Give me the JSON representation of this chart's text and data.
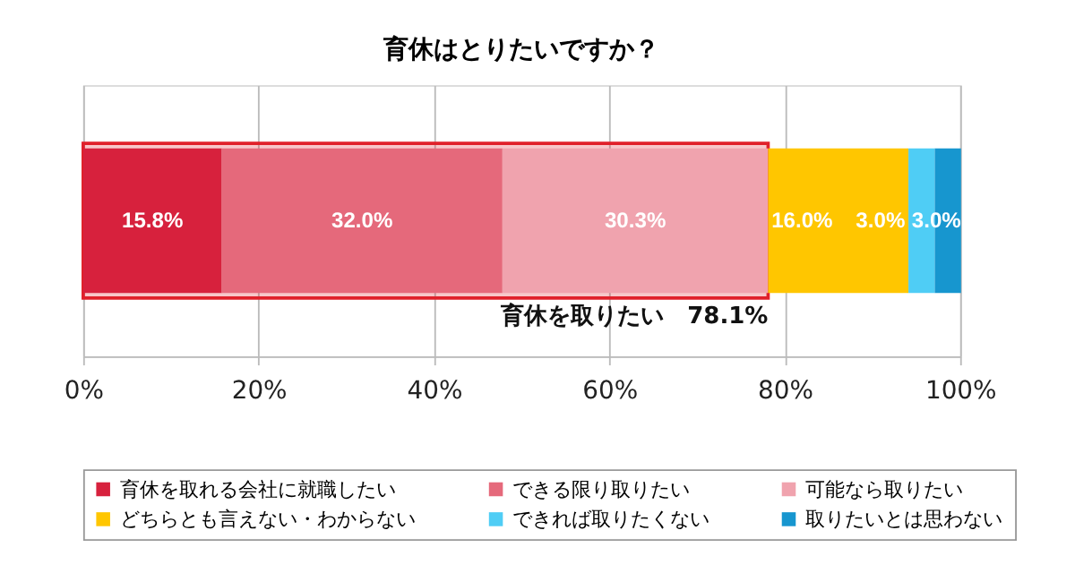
{
  "chart_data": {
    "type": "bar",
    "orientation": "horizontal",
    "stacked": true,
    "title": "育休はとりたいですか？",
    "categories": [
      null
    ],
    "series": [
      {
        "name": "育休を取れる会社に就職したい",
        "color": "#d7213d",
        "values": [
          15.8
        ]
      },
      {
        "name": "できる限り取りたい",
        "color": "#e5697b",
        "values": [
          32.0
        ]
      },
      {
        "name": "可能なら取りたい",
        "color": "#f0a3ae",
        "values": [
          30.3
        ]
      },
      {
        "name": "どちらとも言えない・わからない",
        "color": "#ffc600",
        "values": [
          16.0
        ]
      },
      {
        "name": "できれば取りたくない",
        "color": "#4fcdf5",
        "values": [
          3.0
        ]
      },
      {
        "name": "取りたいとは思わない",
        "color": "#1796cf",
        "values": [
          3.0
        ]
      }
    ],
    "value_labels": [
      "15.8%",
      "32.0%",
      "30.3%",
      "16.0%",
      "3.0%",
      "3.0%"
    ],
    "bands": [
      {
        "axis": "x",
        "from": 0,
        "to": 78.1,
        "label": "育休を取りたい　78.1%",
        "color": "#e0202a"
      }
    ],
    "xlim": [
      0,
      100
    ],
    "xticks": [
      {
        "value": 0,
        "label": "0%"
      },
      {
        "value": 20,
        "label": "20%"
      },
      {
        "value": 40,
        "label": "40%"
      },
      {
        "value": 60,
        "label": "60%"
      },
      {
        "value": 80,
        "label": "80%"
      },
      {
        "value": 100,
        "label": "100%"
      }
    ],
    "grid": "x",
    "legend": "bottom"
  }
}
